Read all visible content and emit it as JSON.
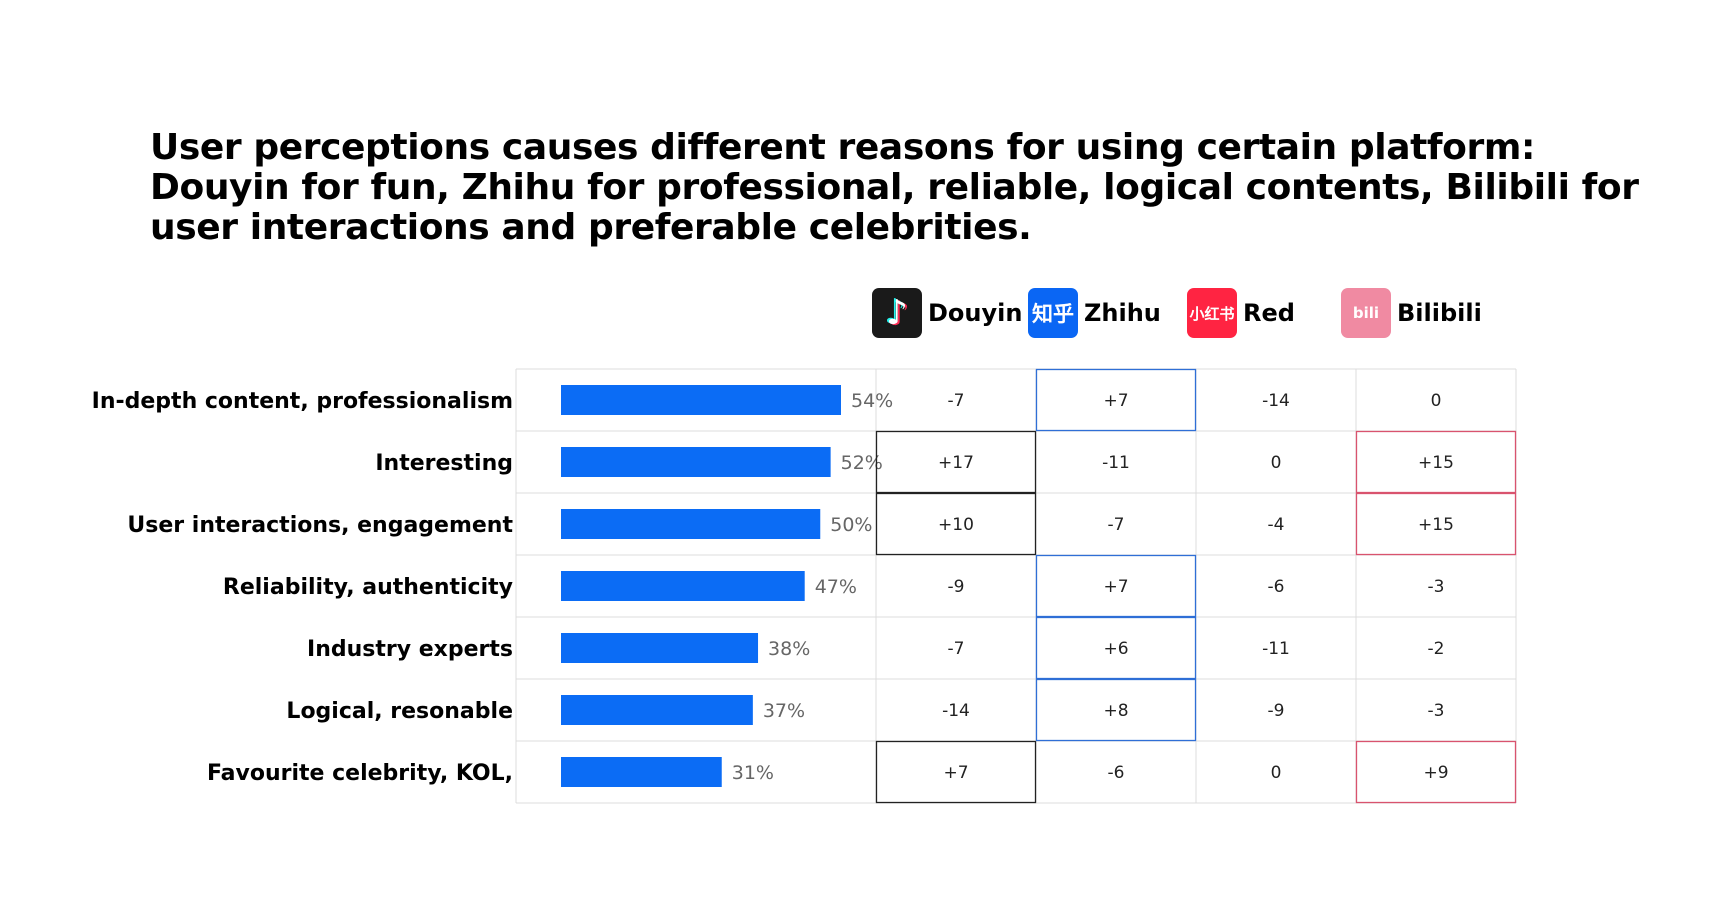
{
  "title_lines": [
    "User perceptions causes different reasons for using certain platform:",
    "Douyin for fun, Zhihu for professional, reliable, logical contents, Bilibili for",
    "user interactions and preferable celebrities."
  ],
  "platforms": [
    {
      "name": "Douyin",
      "logo_icon": "douyin-icon",
      "logo_text": "♪",
      "color": "#1a1a1a"
    },
    {
      "name": "Zhihu",
      "logo_icon": "zhihu-icon",
      "logo_text": "知乎",
      "color": "#0a66f4"
    },
    {
      "name": "Red",
      "logo_icon": "red-icon",
      "logo_text": "小红书",
      "color": "#ff2442"
    },
    {
      "name": "Bilibili",
      "logo_icon": "bilibili-icon",
      "logo_text": "bili",
      "color": "#f08aa2"
    }
  ],
  "chart_data": {
    "type": "bar",
    "orientation": "horizontal",
    "bar_color": "#0b6cf5",
    "value_suffix": "%",
    "categories": [
      "In-depth content, professionalism",
      "Interesting",
      "User interactions, engagement",
      "Reliability, authenticity",
      "Industry experts",
      "Logical, resonable",
      "Favourite celebrity, KOL,"
    ],
    "values": [
      54,
      52,
      50,
      47,
      38,
      37,
      31
    ],
    "table": {
      "columns": [
        "Douyin",
        "Zhihu",
        "Red",
        "Bilibili"
      ],
      "rows": [
        [
          "-7",
          "+7",
          "-14",
          "0"
        ],
        [
          "+17",
          "-11",
          "0",
          "+15"
        ],
        [
          "+10",
          "-7",
          "-4",
          "+15"
        ],
        [
          "-9",
          "+7",
          "-6",
          "-3"
        ],
        [
          "-7",
          "+6",
          "-11",
          "-2"
        ],
        [
          "-14",
          "+8",
          "-9",
          "-3"
        ],
        [
          "+7",
          "-6",
          "0",
          "+9"
        ]
      ],
      "highlights": [
        {
          "row": 0,
          "col": 1,
          "color": "#2f6fd6"
        },
        {
          "row": 1,
          "col": 0,
          "color": "#222222"
        },
        {
          "row": 1,
          "col": 3,
          "color": "#d9536e"
        },
        {
          "row": 2,
          "col": 0,
          "color": "#222222"
        },
        {
          "row": 2,
          "col": 3,
          "color": "#d9536e"
        },
        {
          "row": 3,
          "col": 1,
          "color": "#2f6fd6"
        },
        {
          "row": 4,
          "col": 1,
          "color": "#2f6fd6"
        },
        {
          "row": 5,
          "col": 1,
          "color": "#2f6fd6"
        },
        {
          "row": 6,
          "col": 0,
          "color": "#222222"
        },
        {
          "row": 6,
          "col": 3,
          "color": "#d9536e"
        }
      ]
    }
  }
}
